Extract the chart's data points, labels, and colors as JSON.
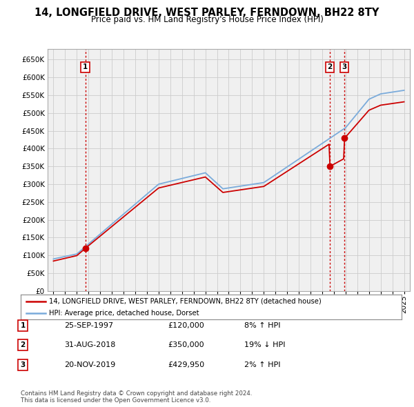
{
  "title": "14, LONGFIELD DRIVE, WEST PARLEY, FERNDOWN, BH22 8TY",
  "subtitle": "Price paid vs. HM Land Registry's House Price Index (HPI)",
  "legend_label_red": "14, LONGFIELD DRIVE, WEST PARLEY, FERNDOWN, BH22 8TY (detached house)",
  "legend_label_blue": "HPI: Average price, detached house, Dorset",
  "transactions": [
    {
      "num": 1,
      "date": "25-SEP-1997",
      "price": 120000,
      "pct": "8%",
      "dir": "↑",
      "x": 1997.73
    },
    {
      "num": 2,
      "date": "31-AUG-2018",
      "price": 350000,
      "pct": "19%",
      "dir": "↓",
      "x": 2018.66
    },
    {
      "num": 3,
      "date": "20-NOV-2019",
      "price": 429950,
      "pct": "2%",
      "dir": "↑",
      "x": 2019.89
    }
  ],
  "footer": "Contains HM Land Registry data © Crown copyright and database right 2024.\nThis data is licensed under the Open Government Licence v3.0.",
  "ylim": [
    0,
    680000
  ],
  "yticks": [
    0,
    50000,
    100000,
    150000,
    200000,
    250000,
    300000,
    350000,
    400000,
    450000,
    500000,
    550000,
    600000,
    650000
  ],
  "xlim": [
    1994.5,
    2025.5
  ],
  "red_color": "#cc0000",
  "blue_color": "#7aabdb",
  "grid_color": "#cccccc",
  "bg_color": "#ffffff",
  "plot_bg": "#f0f0f0"
}
